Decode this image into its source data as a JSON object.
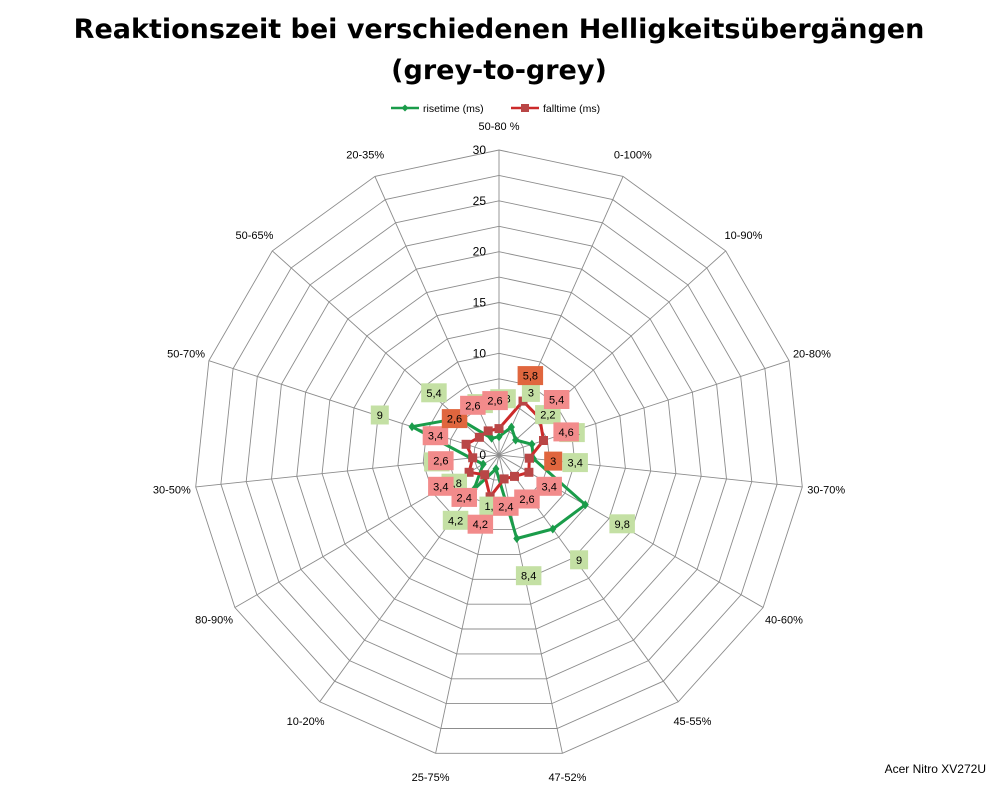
{
  "chart_data": {
    "type": "radar",
    "title": "Reaktionszeit bei verschiedenen Helligkeitsübergängen",
    "subtitle": "(grey-to-grey)",
    "categories": [
      "50-80 %",
      "0-100%",
      "10-90%",
      "20-80%",
      "30-70%",
      "40-60%",
      "45-55%",
      "47-52%",
      "25-75%",
      "10-20%",
      "80-90%",
      "30-50%",
      "50-70%",
      "50-65%",
      "20-35%"
    ],
    "rlim": [
      0,
      30
    ],
    "ticks": [
      0,
      5,
      10,
      15,
      20,
      25,
      30
    ],
    "tick_labels": [
      "0",
      "5",
      "10",
      "15",
      "20",
      "25",
      "30"
    ],
    "grid": true,
    "legend_position": "top",
    "series": [
      {
        "name": "risetime (ms)",
        "color": "#1a9c4a",
        "marker": "diamond",
        "values": [
          1.8,
          3,
          2.2,
          3.4,
          3.4,
          9.8,
          9,
          8.4,
          1.4,
          4.2,
          1.8,
          2.8,
          9,
          5.4,
          1.8
        ],
        "labels": [
          "1,8",
          "3",
          "2,2",
          "3,4",
          "3,4",
          "9,8",
          "9",
          "8,4",
          "1,4",
          "4,2",
          "1,8",
          "2,8",
          "9",
          "5,4",
          "1,8"
        ],
        "label_bg": "#c4e0a4"
      },
      {
        "name": "falltime (ms)",
        "color": "#cc2a2a",
        "marker": "square",
        "values": [
          2.6,
          5.8,
          5.4,
          4.6,
          3,
          3.4,
          2.6,
          2.4,
          4.2,
          2.4,
          3.4,
          2.6,
          3.4,
          2.6,
          2.6
        ],
        "labels": [
          "2,6",
          "5,8",
          "5,4",
          "4,6",
          "3",
          "3,4",
          "2,6",
          "2,4",
          "4,2",
          "2,4",
          "3,4",
          "2,6",
          "3,4",
          "2,6",
          "2,6"
        ],
        "label_bg": "#f28b8b",
        "label_bg_alt": "#e0663e"
      }
    ]
  },
  "credit": "Acer Nitro XV272U"
}
